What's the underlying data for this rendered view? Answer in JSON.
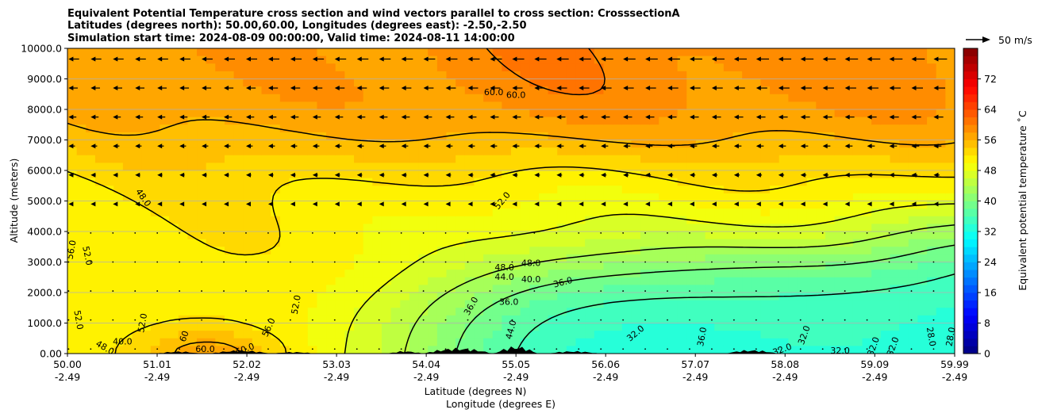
{
  "chart_data": {
    "type": "heatmap",
    "title_lines": [
      "Equivalent Potential Temperature cross section and wind vectors parallel to cross section: CrosssectionA",
      "Latitudes (degrees north): 50.00,60.00, Longitudes (degrees east): -2.50,-2.50",
      "Simulation start time: 2024-08-09 00:00:00, Valid time: 2024-08-11 14:00:00"
    ],
    "xlabel_lines": [
      "Latitude (degrees N)",
      "Longitude (degrees E)"
    ],
    "ylabel": "Altitude (meters)",
    "x_ticks": [
      {
        "lat": "50.00",
        "lon": "-2.49",
        "value": 50.0
      },
      {
        "lat": "51.01",
        "lon": "-2.49",
        "value": 51.01
      },
      {
        "lat": "52.02",
        "lon": "-2.49",
        "value": 52.02
      },
      {
        "lat": "53.03",
        "lon": "-2.49",
        "value": 53.03
      },
      {
        "lat": "54.04",
        "lon": "-2.49",
        "value": 54.04
      },
      {
        "lat": "55.05",
        "lon": "-2.49",
        "value": 55.05
      },
      {
        "lat": "56.06",
        "lon": "-2.49",
        "value": 56.06
      },
      {
        "lat": "57.07",
        "lon": "-2.49",
        "value": 57.07
      },
      {
        "lat": "58.08",
        "lon": "-2.49",
        "value": 58.08
      },
      {
        "lat": "59.09",
        "lon": "-2.49",
        "value": 59.09
      },
      {
        "lat": "59.99",
        "lon": "-2.49",
        "value": 59.99
      }
    ],
    "y_ticks": [
      {
        "label": "0.00",
        "value": 0
      },
      {
        "label": "1000.0",
        "value": 1000
      },
      {
        "label": "2000.0",
        "value": 2000
      },
      {
        "label": "3000.0",
        "value": 3000
      },
      {
        "label": "4000.0",
        "value": 4000
      },
      {
        "label": "5000.0",
        "value": 5000
      },
      {
        "label": "6000.0",
        "value": 6000
      },
      {
        "label": "7000.0",
        "value": 7000
      },
      {
        "label": "8000.0",
        "value": 8000
      },
      {
        "label": "9000.0",
        "value": 9000
      },
      {
        "label": "10000.0",
        "value": 10000
      }
    ],
    "xlim": [
      50.0,
      59.99
    ],
    "ylim": [
      0,
      10000
    ],
    "grid": "horizontal",
    "colorbar": {
      "label": "Equivalent potential temperature ˚C",
      "min": 0,
      "max": 80,
      "ticks": [
        "0",
        "8",
        "16",
        "24",
        "32",
        "40",
        "48",
        "56",
        "64",
        "72"
      ],
      "tick_values": [
        0,
        8,
        16,
        24,
        32,
        40,
        48,
        56,
        64,
        72
      ],
      "colormap": "jet"
    },
    "quiver_key": {
      "label": "50 m/s",
      "speed": 50
    },
    "contour_levels": [
      28,
      32,
      36,
      40,
      44,
      48,
      52,
      56,
      60
    ],
    "contour_labels": [
      {
        "text": "60.0",
        "lat": 54.8,
        "alt": 8550,
        "rot": 0
      },
      {
        "text": "60.0",
        "lat": 55.05,
        "alt": 8450,
        "rot": 0
      },
      {
        "text": "52.0",
        "lat": 54.9,
        "alt": 5000,
        "rot": 50
      },
      {
        "text": "48.0",
        "lat": 50.85,
        "alt": 5100,
        "rot": -55
      },
      {
        "text": "56.0",
        "lat": 50.05,
        "alt": 3400,
        "rot": 80
      },
      {
        "text": "52.0",
        "lat": 50.22,
        "alt": 3200,
        "rot": -78
      },
      {
        "text": "52.0",
        "lat": 50.12,
        "alt": 1100,
        "rot": -80
      },
      {
        "text": "52.0",
        "lat": 50.85,
        "alt": 1000,
        "rot": 80
      },
      {
        "text": "40.0",
        "lat": 50.62,
        "alt": 380,
        "rot": 0
      },
      {
        "text": "48.0",
        "lat": 50.42,
        "alt": 180,
        "rot": -30
      },
      {
        "text": "60",
        "lat": 51.32,
        "alt": 560,
        "rot": 70
      },
      {
        "text": "60.0",
        "lat": 51.55,
        "alt": 130,
        "rot": 0
      },
      {
        "text": "60.0",
        "lat": 52.0,
        "alt": 130,
        "rot": 20
      },
      {
        "text": "56.0",
        "lat": 52.27,
        "alt": 850,
        "rot": 65
      },
      {
        "text": "52.0",
        "lat": 52.58,
        "alt": 1600,
        "rot": 80
      },
      {
        "text": "48.0",
        "lat": 54.92,
        "alt": 2800,
        "rot": 0
      },
      {
        "text": "48.0",
        "lat": 55.22,
        "alt": 2950,
        "rot": 0
      },
      {
        "text": "44.0",
        "lat": 54.92,
        "alt": 2500,
        "rot": 0
      },
      {
        "text": "40.0",
        "lat": 55.22,
        "alt": 2420,
        "rot": 0
      },
      {
        "text": "36.0",
        "lat": 55.58,
        "alt": 2320,
        "rot": 15
      },
      {
        "text": "36.0",
        "lat": 54.97,
        "alt": 1680,
        "rot": 0
      },
      {
        "text": "36.0",
        "lat": 54.55,
        "alt": 1550,
        "rot": 60
      },
      {
        "text": "44.0",
        "lat": 55.0,
        "alt": 780,
        "rot": 75
      },
      {
        "text": "32.0",
        "lat": 56.4,
        "alt": 650,
        "rot": 40
      },
      {
        "text": "36.0",
        "lat": 57.15,
        "alt": 550,
        "rot": 80
      },
      {
        "text": "32.0",
        "lat": 58.05,
        "alt": 120,
        "rot": 20
      },
      {
        "text": "32.0",
        "lat": 58.3,
        "alt": 600,
        "rot": 70
      },
      {
        "text": "32.0",
        "lat": 58.7,
        "alt": 80,
        "rot": 0
      },
      {
        "text": "32.0",
        "lat": 59.08,
        "alt": 230,
        "rot": 70
      },
      {
        "text": "32.0",
        "lat": 59.3,
        "alt": 230,
        "rot": 70
      },
      {
        "text": "28.0",
        "lat": 59.72,
        "alt": 550,
        "rot": -80
      },
      {
        "text": "28.0",
        "lat": 59.95,
        "alt": 550,
        "rot": 80
      }
    ]
  },
  "colors": {
    "axis": "#000000",
    "grid": "#b0b0b0",
    "contour": "#000000",
    "terrain": "#000000"
  }
}
